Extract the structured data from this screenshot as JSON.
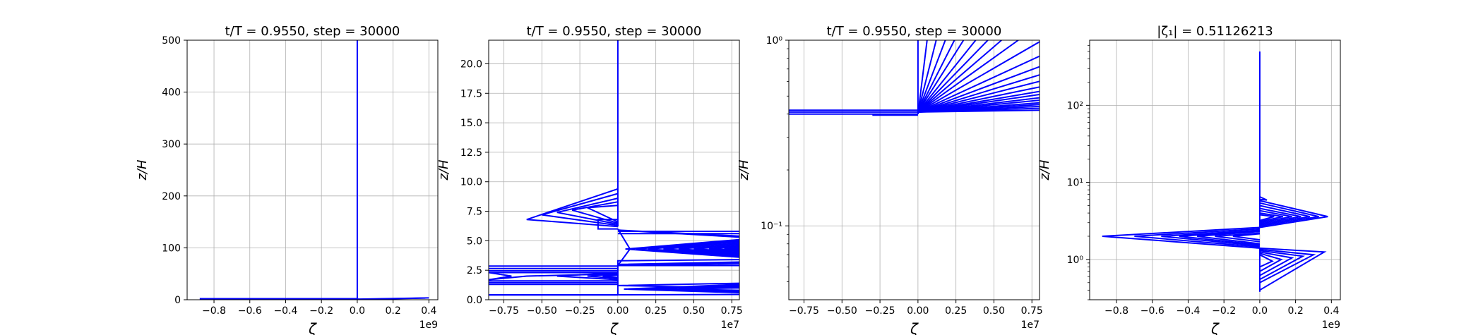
{
  "chart_data": [
    {
      "type": "line",
      "title": "t/T = 0.9550, step = 30000",
      "xlabel": "ζ",
      "ylabel": "z/H",
      "xlim": [
        -0.95,
        0.45
      ],
      "ylim": [
        0,
        500
      ],
      "x_offset_label": "1e9",
      "xticks": [
        -0.8,
        -0.6,
        -0.4,
        -0.2,
        0.0,
        0.2,
        0.4
      ],
      "xtick_labels": [
        "−0.8",
        "−0.6",
        "−0.4",
        "−0.2",
        "0.0",
        "0.2",
        "0.4"
      ],
      "yticks": [
        0,
        100,
        200,
        300,
        400,
        500
      ],
      "ytick_labels": [
        "0",
        "100",
        "200",
        "300",
        "400",
        "500"
      ],
      "yscale": "linear",
      "grid": true,
      "color": "#0000ff",
      "series": [
        {
          "x": [
            0,
            0
          ],
          "y": [
            2.2,
            500
          ]
        },
        {
          "x": [
            -0.88,
            0
          ],
          "y": [
            2.0,
            2.0
          ]
        },
        {
          "x": [
            0,
            0.4
          ],
          "y": [
            1.2,
            3.5
          ]
        },
        {
          "x": [
            0,
            0.38
          ],
          "y": [
            0.6,
            3.2
          ]
        }
      ]
    },
    {
      "type": "line",
      "title": "t/T = 0.9550, step = 30000",
      "xlabel": "ζ",
      "ylabel": "z/H",
      "xlim": [
        -0.85,
        0.8
      ],
      "ylim": [
        0,
        22
      ],
      "x_offset_label": "1e7",
      "xticks": [
        -0.75,
        -0.5,
        -0.25,
        0.0,
        0.25,
        0.5,
        0.75
      ],
      "xtick_labels": [
        "−0.75",
        "−0.50",
        "−0.25",
        "0.00",
        "0.25",
        "0.50",
        "0.75"
      ],
      "yticks": [
        0,
        2.5,
        5,
        7.5,
        10,
        12.5,
        15,
        17.5,
        20
      ],
      "ytick_labels": [
        "0.0",
        "2.5",
        "5.0",
        "7.5",
        "10.0",
        "12.5",
        "15.0",
        "17.5",
        "20.0"
      ],
      "yscale": "linear",
      "grid": true,
      "color": "#0000ff",
      "series": [
        {
          "x": [
            0,
            0,
            0,
            0,
            0,
            0
          ],
          "y": [
            22,
            15,
            11,
            10.2,
            9.6,
            6.2
          ]
        },
        {
          "x": [
            0,
            -0.6,
            0
          ],
          "y": [
            9.4,
            6.8,
            6.2
          ]
        },
        {
          "x": [
            0,
            -0.5,
            0
          ],
          "y": [
            9.0,
            7.2,
            6.3
          ]
        },
        {
          "x": [
            0,
            -0.4,
            0
          ],
          "y": [
            8.6,
            7.4,
            6.4
          ]
        },
        {
          "x": [
            0,
            -0.3,
            0
          ],
          "y": [
            8.3,
            7.6,
            6.5
          ]
        },
        {
          "x": [
            0,
            -0.2,
            0
          ],
          "y": [
            8.0,
            7.8,
            6.6
          ]
        },
        {
          "x": [
            0,
            -0.13,
            -0.13,
            0
          ],
          "y": [
            6.8,
            6.8,
            6.0,
            6.0
          ]
        },
        {
          "x": [
            0.8,
            0
          ],
          "y": [
            5.8,
            5.8
          ]
        },
        {
          "x": [
            0.8,
            0
          ],
          "y": [
            5.6,
            5.6
          ]
        },
        {
          "x": [
            0.8,
            0,
            0.8
          ],
          "y": [
            5.4,
            5.9,
            5.3
          ]
        },
        {
          "x": [
            0.8,
            0.05,
            0.8
          ],
          "y": [
            5.1,
            4.3,
            3.6
          ]
        },
        {
          "x": [
            0.8,
            0.12,
            0.8
          ],
          "y": [
            5.0,
            4.3,
            3.7
          ]
        },
        {
          "x": [
            0.8,
            0.2,
            0.8
          ],
          "y": [
            4.9,
            4.3,
            3.8
          ]
        },
        {
          "x": [
            0.8,
            0.3,
            0.8
          ],
          "y": [
            4.8,
            4.3,
            3.9
          ]
        },
        {
          "x": [
            0.8,
            0.4,
            0.8
          ],
          "y": [
            4.7,
            4.3,
            4.0
          ]
        },
        {
          "x": [
            0.8,
            0.5,
            0.8
          ],
          "y": [
            4.6,
            4.3,
            4.1
          ]
        },
        {
          "x": [
            0.8,
            0.6,
            0.8
          ],
          "y": [
            4.5,
            4.3,
            4.2
          ]
        },
        {
          "x": [
            0.8,
            0.7,
            0.8
          ],
          "y": [
            4.4,
            4.3,
            4.3
          ]
        },
        {
          "x": [
            0.8,
            0,
            0
          ],
          "y": [
            3.4,
            3.3,
            2.9
          ]
        },
        {
          "x": [
            0.8,
            0.02,
            0,
            0.8
          ],
          "y": [
            3.2,
            3.0,
            2.9,
            2.9
          ]
        },
        {
          "x": [
            0.8,
            0,
            0.8
          ],
          "y": [
            3.1,
            2.95,
            2.95
          ]
        },
        {
          "x": [
            0,
            0.08,
            0
          ],
          "y": [
            6.0,
            4.3,
            2.9
          ]
        },
        {
          "x": [
            -0.85,
            0
          ],
          "y": [
            2.85,
            2.85
          ]
        },
        {
          "x": [
            -0.85,
            0
          ],
          "y": [
            2.65,
            2.65
          ]
        },
        {
          "x": [
            -0.85,
            0
          ],
          "y": [
            2.45,
            2.45
          ]
        },
        {
          "x": [
            -0.85,
            -0.7,
            -0.85
          ],
          "y": [
            2.3,
            2.0,
            1.7
          ]
        },
        {
          "x": [
            0,
            -0.85
          ],
          "y": [
            2.3,
            2.3
          ]
        },
        {
          "x": [
            0,
            -0.6,
            -0.85
          ],
          "y": [
            2.2,
            2.0,
            1.7
          ]
        },
        {
          "x": [
            0,
            -0.4,
            0
          ],
          "y": [
            2.3,
            2.0,
            1.7
          ]
        },
        {
          "x": [
            0,
            -0.2,
            0
          ],
          "y": [
            2.2,
            2.0,
            1.8
          ]
        },
        {
          "x": [
            0,
            -0.1,
            0
          ],
          "y": [
            2.1,
            2.0,
            1.9
          ]
        },
        {
          "x": [
            -0.85,
            0
          ],
          "y": [
            1.6,
            1.6
          ]
        },
        {
          "x": [
            -0.85,
            0
          ],
          "y": [
            1.45,
            1.45
          ]
        },
        {
          "x": [
            -0.85,
            0
          ],
          "y": [
            1.3,
            1.3
          ]
        },
        {
          "x": [
            0,
            0,
            0
          ],
          "y": [
            2.9,
            1.0,
            0.4
          ]
        },
        {
          "x": [
            0.8,
            0,
            0.8
          ],
          "y": [
            1.4,
            1.2,
            1.0
          ]
        },
        {
          "x": [
            0.8,
            0.04,
            0.8
          ],
          "y": [
            1.3,
            0.9,
            0.6
          ]
        },
        {
          "x": [
            0.8,
            0.1,
            0.8
          ],
          "y": [
            1.2,
            0.9,
            0.7
          ]
        },
        {
          "x": [
            0.8,
            0.2,
            0.8
          ],
          "y": [
            1.1,
            0.9,
            0.75
          ]
        },
        {
          "x": [
            0.8,
            0.4,
            0.8
          ],
          "y": [
            1.0,
            0.9,
            0.8
          ]
        },
        {
          "x": [
            0.8,
            0,
            -0.85
          ],
          "y": [
            0.45,
            0.42,
            0.42
          ]
        },
        {
          "x": [
            -0.85,
            0
          ],
          "y": [
            0.4,
            0.4
          ]
        }
      ]
    },
    {
      "type": "line",
      "title": "t/T = 0.9550, step = 30000",
      "xlabel": "ζ",
      "ylabel": "z/H",
      "xlim": [
        -0.85,
        0.8
      ],
      "ylim": [
        0.04,
        1.0
      ],
      "x_offset_label": "1e7",
      "xticks": [
        -0.75,
        -0.5,
        -0.25,
        0.0,
        0.25,
        0.5,
        0.75
      ],
      "xtick_labels": [
        "−0.75",
        "−0.50",
        "−0.25",
        "0.00",
        "0.25",
        "0.50",
        "0.75"
      ],
      "yticks": [
        0.1,
        1.0
      ],
      "ytick_labels": [
        "10⁻¹",
        "10⁰"
      ],
      "yscale": "log",
      "grid": true,
      "color": "#0000ff",
      "series": [
        {
          "x": [
            0,
            0
          ],
          "y": [
            0.4,
            1.0
          ]
        },
        {
          "x": [
            0,
            0.06
          ],
          "y": [
            0.4,
            1.0
          ]
        },
        {
          "x": [
            0,
            0.12
          ],
          "y": [
            0.41,
            1.0
          ]
        },
        {
          "x": [
            0,
            0.18
          ],
          "y": [
            0.41,
            1.0
          ]
        },
        {
          "x": [
            0,
            0.24
          ],
          "y": [
            0.41,
            1.0
          ]
        },
        {
          "x": [
            0,
            0.3
          ],
          "y": [
            0.41,
            1.0
          ]
        },
        {
          "x": [
            0,
            0.38
          ],
          "y": [
            0.41,
            1.0
          ]
        },
        {
          "x": [
            0,
            0.46
          ],
          "y": [
            0.41,
            1.0
          ]
        },
        {
          "x": [
            0,
            0.55
          ],
          "y": [
            0.41,
            1.0
          ]
        },
        {
          "x": [
            0,
            0.66
          ],
          "y": [
            0.41,
            1.0
          ]
        },
        {
          "x": [
            0,
            0.8
          ],
          "y": [
            0.41,
            0.98
          ]
        },
        {
          "x": [
            0,
            0.8
          ],
          "y": [
            0.41,
            0.82
          ]
        },
        {
          "x": [
            0,
            0.8
          ],
          "y": [
            0.41,
            0.72
          ]
        },
        {
          "x": [
            0,
            0.8
          ],
          "y": [
            0.41,
            0.65
          ]
        },
        {
          "x": [
            0,
            0.8
          ],
          "y": [
            0.41,
            0.6
          ]
        },
        {
          "x": [
            0,
            0.8
          ],
          "y": [
            0.41,
            0.56
          ]
        },
        {
          "x": [
            0,
            0.8
          ],
          "y": [
            0.41,
            0.53
          ]
        },
        {
          "x": [
            0,
            0.8
          ],
          "y": [
            0.41,
            0.51
          ]
        },
        {
          "x": [
            0,
            0.8
          ],
          "y": [
            0.41,
            0.49
          ]
        },
        {
          "x": [
            0,
            0.8
          ],
          "y": [
            0.41,
            0.475
          ]
        },
        {
          "x": [
            0,
            0.8
          ],
          "y": [
            0.41,
            0.46
          ]
        },
        {
          "x": [
            0,
            0.8
          ],
          "y": [
            0.41,
            0.45
          ]
        },
        {
          "x": [
            0,
            0.8
          ],
          "y": [
            0.41,
            0.44
          ]
        },
        {
          "x": [
            0,
            0.8
          ],
          "y": [
            0.41,
            0.43
          ]
        },
        {
          "x": [
            0,
            0.8
          ],
          "y": [
            0.41,
            0.42
          ]
        },
        {
          "x": [
            -0.85,
            0
          ],
          "y": [
            0.42,
            0.42
          ]
        },
        {
          "x": [
            -0.85,
            0
          ],
          "y": [
            0.41,
            0.41
          ]
        },
        {
          "x": [
            -0.85,
            0
          ],
          "y": [
            0.4,
            0.4
          ]
        },
        {
          "x": [
            -0.3,
            0
          ],
          "y": [
            0.395,
            0.395
          ]
        }
      ]
    },
    {
      "type": "line",
      "title": "|ζ₁| = 0.51126213",
      "xlabel": "ζ",
      "ylabel": "z/H",
      "xlim": [
        -0.95,
        0.45
      ],
      "ylim": [
        0.3,
        700
      ],
      "x_offset_label": "1e9",
      "xticks": [
        -0.8,
        -0.6,
        -0.4,
        -0.2,
        0.0,
        0.2,
        0.4
      ],
      "xtick_labels": [
        "−0.8",
        "−0.6",
        "−0.4",
        "−0.2",
        "0.0",
        "0.2",
        "0.4"
      ],
      "yticks": [
        1,
        10,
        100
      ],
      "ytick_labels": [
        "10⁰",
        "10¹",
        "10²"
      ],
      "yscale": "log",
      "grid": true,
      "color": "#0000ff",
      "series": [
        {
          "x": [
            0,
            0,
            0
          ],
          "y": [
            500,
            6.5,
            2.6
          ]
        },
        {
          "x": [
            0,
            0.04,
            0
          ],
          "y": [
            6.5,
            5.9,
            6.0
          ]
        },
        {
          "x": [
            0,
            0.38,
            0
          ],
          "y": [
            5.8,
            3.6,
            2.6
          ]
        },
        {
          "x": [
            0,
            0.33,
            0
          ],
          "y": [
            5.4,
            3.6,
            2.7
          ]
        },
        {
          "x": [
            0,
            0.28,
            0
          ],
          "y": [
            5.0,
            3.6,
            2.8
          ]
        },
        {
          "x": [
            0,
            0.23,
            0
          ],
          "y": [
            4.6,
            3.6,
            2.9
          ]
        },
        {
          "x": [
            0,
            0.18,
            0
          ],
          "y": [
            4.3,
            3.6,
            3.0
          ]
        },
        {
          "x": [
            0,
            0.13,
            0
          ],
          "y": [
            4.0,
            3.6,
            3.1
          ]
        },
        {
          "x": [
            0,
            0.08,
            0
          ],
          "y": [
            3.8,
            3.6,
            3.2
          ]
        },
        {
          "x": [
            0,
            -0.88,
            0
          ],
          "y": [
            2.6,
            2.0,
            1.4
          ]
        },
        {
          "x": [
            0,
            -0.7,
            0
          ],
          "y": [
            2.5,
            2.0,
            1.45
          ]
        },
        {
          "x": [
            0,
            -0.55,
            0
          ],
          "y": [
            2.4,
            2.0,
            1.5
          ]
        },
        {
          "x": [
            0,
            -0.45,
            0
          ],
          "y": [
            2.35,
            2.0,
            1.55
          ]
        },
        {
          "x": [
            0,
            -0.35,
            0
          ],
          "y": [
            2.3,
            2.0,
            1.6
          ]
        },
        {
          "x": [
            0,
            -0.25,
            0
          ],
          "y": [
            2.2,
            2.0,
            1.7
          ]
        },
        {
          "x": [
            0,
            -0.15,
            0
          ],
          "y": [
            2.15,
            2.0,
            1.8
          ]
        },
        {
          "x": [
            0,
            0.36,
            0
          ],
          "y": [
            1.4,
            1.25,
            0.4
          ]
        },
        {
          "x": [
            0,
            0.3,
            0
          ],
          "y": [
            1.35,
            1.15,
            0.5
          ]
        },
        {
          "x": [
            0,
            0.24,
            0
          ],
          "y": [
            1.3,
            1.1,
            0.55
          ]
        },
        {
          "x": [
            0,
            0.18,
            0
          ],
          "y": [
            1.25,
            1.05,
            0.62
          ]
        },
        {
          "x": [
            0,
            0.12,
            0
          ],
          "y": [
            1.2,
            1.0,
            0.7
          ]
        },
        {
          "x": [
            0,
            0.07,
            0
          ],
          "y": [
            1.15,
            0.95,
            0.8
          ]
        },
        {
          "x": [
            0,
            0,
            0
          ],
          "y": [
            1.4,
            0.4,
            0.38
          ]
        }
      ]
    }
  ]
}
